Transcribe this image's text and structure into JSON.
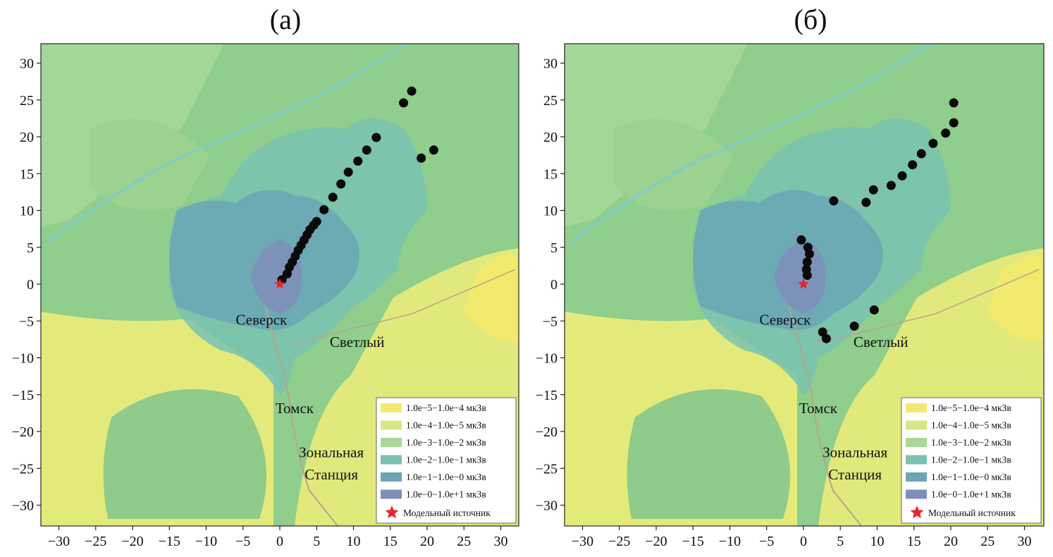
{
  "panels": [
    {
      "title": "(а)",
      "ticks": [
        "−30",
        "−25",
        "−20",
        "−15",
        "−10",
        "−5",
        "0",
        "5",
        "10",
        "15",
        "20",
        "25",
        "30"
      ],
      "places": [
        "Северск",
        "Светлый",
        "Томск",
        "Зональная",
        "Станция"
      ],
      "points": [
        [
          0,
          0
        ],
        [
          0.3,
          0.6
        ],
        [
          1.0,
          1.4
        ],
        [
          1.3,
          2.3
        ],
        [
          1.7,
          3.0
        ],
        [
          2.1,
          3.8
        ],
        [
          2.5,
          4.6
        ],
        [
          2.9,
          5.3
        ],
        [
          3.3,
          6.0
        ],
        [
          3.7,
          6.7
        ],
        [
          4.1,
          7.4
        ],
        [
          4.6,
          8.0
        ],
        [
          5.0,
          8.5
        ],
        [
          6.0,
          10.1
        ],
        [
          7.2,
          11.8
        ],
        [
          8.3,
          13.6
        ],
        [
          9.3,
          15.2
        ],
        [
          10.6,
          16.7
        ],
        [
          11.8,
          18.2
        ],
        [
          13.1,
          19.9
        ],
        [
          16.8,
          24.6
        ],
        [
          17.9,
          26.2
        ],
        [
          19.2,
          17.1
        ],
        [
          20.9,
          18.2
        ]
      ],
      "legend": [
        {
          "label": "1.0e−5−1.0e−4 мкЗв",
          "color": "#f4e875"
        },
        {
          "label": "1.0e−4−1.0e−5 мкЗв",
          "color": "#d7e884"
        },
        {
          "label": "1.0e−3−1.0e−2 мкЗв",
          "color": "#a9d79a"
        },
        {
          "label": "1.0e−2−1.0e−1 мкЗв",
          "color": "#79c2b0"
        },
        {
          "label": "1.0e−1−1.0e−0 мкЗв",
          "color": "#6aa6b5"
        },
        {
          "label": "1.0e−0−1.0e+1 мкЗв",
          "color": "#7f8fb8"
        }
      ],
      "source_label": "Модельный источник"
    },
    {
      "title": "(б)",
      "ticks": [
        "−30",
        "−25",
        "−20",
        "−15",
        "−10",
        "−5",
        "0",
        "5",
        "10",
        "15",
        "20",
        "25",
        "30"
      ],
      "places": [
        "Северск",
        "Светлый",
        "Томск",
        "Зональная",
        "Станция"
      ],
      "points": [
        [
          0,
          0
        ],
        [
          -0.3,
          6.0
        ],
        [
          0.6,
          5.0
        ],
        [
          0.8,
          4.1
        ],
        [
          0.5,
          3.0
        ],
        [
          0.4,
          2.0
        ],
        [
          0.5,
          1.2
        ],
        [
          2.6,
          -6.5
        ],
        [
          3.1,
          -7.4
        ],
        [
          4.1,
          11.3
        ],
        [
          6.9,
          -5.7
        ],
        [
          8.5,
          11.1
        ],
        [
          9.5,
          12.8
        ],
        [
          9.6,
          -3.5
        ],
        [
          11.9,
          13.4
        ],
        [
          13.4,
          14.7
        ],
        [
          14.8,
          16.2
        ],
        [
          16.0,
          17.7
        ],
        [
          17.6,
          19.1
        ],
        [
          19.3,
          20.5
        ],
        [
          20.4,
          21.9
        ],
        [
          20.4,
          24.6
        ]
      ],
      "legend": [
        {
          "label": "1.0e−5−1.0e−4 мкЗв",
          "color": "#f4e875"
        },
        {
          "label": "1.0e−4−1.0e−5 мкЗв",
          "color": "#d7e884"
        },
        {
          "label": "1.0e−3−1.0e−2 мкЗв",
          "color": "#a9d79a"
        },
        {
          "label": "1.0e−2−1.0e−1 мкЗв",
          "color": "#79c2b0"
        },
        {
          "label": "1.0e−1−1.0e−0 мкЗв",
          "color": "#6aa6b5"
        },
        {
          "label": "1.0e−0−1.0e+1 мкЗв",
          "color": "#7f8fb8"
        }
      ],
      "source_label": "Модельный источник"
    }
  ],
  "source_color": "#e8242c"
}
